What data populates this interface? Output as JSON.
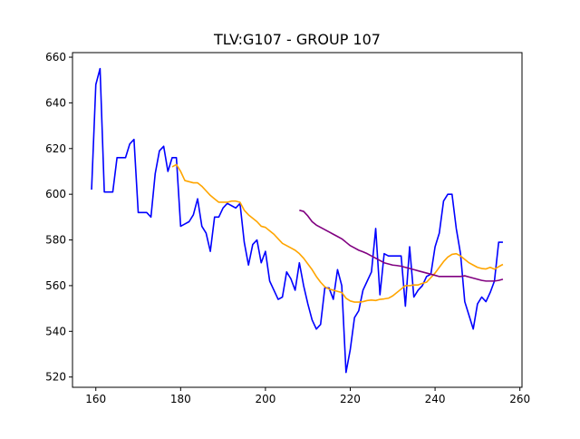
{
  "chart_data": {
    "type": "line",
    "title": "TLV:G107 - GROUP 107",
    "xlabel": "",
    "ylabel": "",
    "xlim": [
      154.5,
      260.5
    ],
    "ylim": [
      515.5,
      662.0
    ],
    "x_ticks": [
      160,
      180,
      200,
      220,
      240,
      260
    ],
    "y_ticks": [
      520,
      540,
      560,
      580,
      600,
      620,
      640,
      660
    ],
    "grid": false,
    "legend": "none",
    "series": [
      {
        "color": "#0000ff",
        "x": [
          159,
          160,
          161,
          162,
          163,
          164,
          165,
          166,
          167,
          168,
          169,
          170,
          171,
          172,
          173,
          174,
          175,
          176,
          177,
          178,
          179,
          180,
          181,
          182,
          183,
          184,
          185,
          186,
          187,
          188,
          189,
          190,
          191,
          192,
          193,
          194,
          195,
          196,
          197,
          198,
          199,
          200,
          201,
          202,
          203,
          204,
          205,
          206,
          207,
          208,
          209,
          210,
          211,
          212,
          213,
          214,
          215,
          216,
          217,
          218,
          219,
          220,
          221,
          222,
          223,
          224,
          225,
          226,
          227,
          228,
          229,
          230,
          231,
          232,
          233,
          234,
          235,
          236,
          237,
          238,
          239,
          240,
          241,
          242,
          243,
          244,
          245,
          246,
          247,
          248,
          249,
          250,
          251,
          252,
          253,
          254,
          255,
          256
        ],
        "values": [
          602,
          648,
          655,
          601,
          601,
          601,
          616,
          616,
          616,
          622,
          624,
          592,
          592,
          592,
          590,
          609,
          619,
          621,
          610,
          616,
          616,
          586,
          587,
          588,
          591,
          598,
          586,
          583,
          575,
          590,
          590,
          594,
          596,
          595,
          594,
          596,
          579,
          569,
          578,
          580,
          570,
          575,
          562,
          558,
          554,
          555,
          566,
          563,
          558,
          570,
          560,
          552,
          545,
          541,
          543,
          559,
          559,
          554,
          567,
          560,
          522,
          532,
          546,
          549,
          558,
          562,
          566,
          585,
          556,
          574,
          573,
          573,
          573,
          573,
          551,
          577,
          555,
          558,
          560,
          564,
          565,
          577,
          583,
          597,
          600,
          600,
          585,
          574,
          553,
          547,
          541,
          552,
          555,
          553,
          557,
          562,
          579,
          579
        ]
      },
      {
        "color": "#ffa500",
        "x": [
          178,
          179,
          180,
          181,
          182,
          183,
          184,
          185,
          186,
          187,
          188,
          189,
          190,
          191,
          192,
          193,
          194,
          195,
          196,
          197,
          198,
          199,
          200,
          201,
          202,
          203,
          204,
          205,
          206,
          207,
          208,
          209,
          210,
          211,
          212,
          213,
          214,
          215,
          216,
          217,
          218,
          219,
          220,
          221,
          222,
          223,
          224,
          225,
          226,
          227,
          228,
          229,
          230,
          231,
          232,
          233,
          234,
          235,
          236,
          237,
          238,
          239,
          240,
          241,
          242,
          243,
          244,
          245,
          246,
          247,
          248,
          249,
          250,
          251,
          252,
          253,
          254,
          255,
          256
        ],
        "values": [
          612,
          613,
          610,
          606,
          605.5,
          605,
          605,
          603.5,
          601.5,
          599.5,
          598,
          596.5,
          596.5,
          596.5,
          597,
          597,
          596.5,
          593,
          591,
          589.5,
          588,
          586,
          585.5,
          584,
          582.5,
          580.5,
          578.5,
          577.5,
          576.5,
          575.5,
          574,
          572,
          569.5,
          567,
          564,
          561.5,
          559.5,
          558.5,
          558,
          557.5,
          557,
          554.5,
          553.3,
          552.8,
          552.8,
          553,
          553.5,
          553.7,
          553.5,
          554,
          554.2,
          554.5,
          555.5,
          557,
          558.5,
          560,
          560,
          560.3,
          560.3,
          561,
          561.5,
          563.5,
          565.5,
          568,
          570.5,
          572.5,
          573.7,
          574,
          573,
          571.5,
          570,
          569,
          568,
          567.5,
          567.3,
          568,
          567.2,
          568.3,
          569.3
        ]
      },
      {
        "color": "#800080",
        "x": [
          208,
          209,
          210,
          211,
          212,
          213,
          214,
          215,
          216,
          217,
          218,
          219,
          220,
          221,
          222,
          223,
          224,
          225,
          226,
          227,
          228,
          229,
          230,
          231,
          232,
          233,
          234,
          235,
          236,
          237,
          238,
          239,
          240,
          241,
          242,
          243,
          244,
          245,
          246,
          247,
          248,
          249,
          250,
          251,
          252,
          253,
          254,
          255,
          256
        ],
        "values": [
          593,
          592.5,
          590.5,
          588,
          586.5,
          585.5,
          584.5,
          583.5,
          582.5,
          581.5,
          580.5,
          579,
          577.5,
          576.5,
          575.5,
          574.8,
          574,
          573,
          572,
          571,
          570,
          569.5,
          569,
          568.8,
          568.5,
          568,
          567.5,
          567,
          566.5,
          566,
          565.5,
          565,
          564.5,
          564,
          564,
          564,
          564,
          564,
          564,
          564.3,
          563.8,
          563.3,
          562.8,
          562.3,
          562,
          562,
          562,
          562.3,
          562.8
        ]
      }
    ]
  }
}
